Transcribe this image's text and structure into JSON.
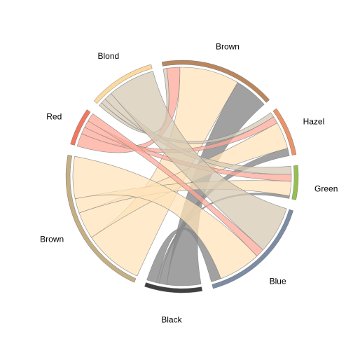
{
  "chart_data": {
    "type": "chord",
    "title": "",
    "groups": {
      "hair": [
        {
          "id": "h_black",
          "label": "Black",
          "color": "#404040"
        },
        {
          "id": "h_brown",
          "label": "Brown",
          "color": "#C4AE84"
        },
        {
          "id": "h_red",
          "label": "Red",
          "color": "#F07860"
        },
        {
          "id": "h_blond",
          "label": "Blond",
          "color": "#FBD9A1"
        }
      ],
      "eye": [
        {
          "id": "e_brown",
          "label": "Brown",
          "color": "#B9875E"
        },
        {
          "id": "e_hazel",
          "label": "Hazel",
          "color": "#E8946A"
        },
        {
          "id": "e_green",
          "label": "Green",
          "color": "#96BF50"
        },
        {
          "id": "e_blue",
          "label": "Blue",
          "color": "#7B8CA4"
        }
      ]
    },
    "matrix_rows": "hair: Black, Brown, Red, Blond",
    "matrix_cols": "eye: Brown, Blue, Hazel, Green",
    "matrix": [
      [
        68,
        20,
        15,
        5
      ],
      [
        119,
        84,
        54,
        29
      ],
      [
        26,
        17,
        14,
        14
      ],
      [
        7,
        94,
        10,
        16
      ]
    ],
    "ribbon_colors": {
      "h_black": "#8A8A8A",
      "h_brown": "#FFE3BA",
      "h_red": "#FFA898",
      "h_blond": "#D7CAB4"
    }
  }
}
